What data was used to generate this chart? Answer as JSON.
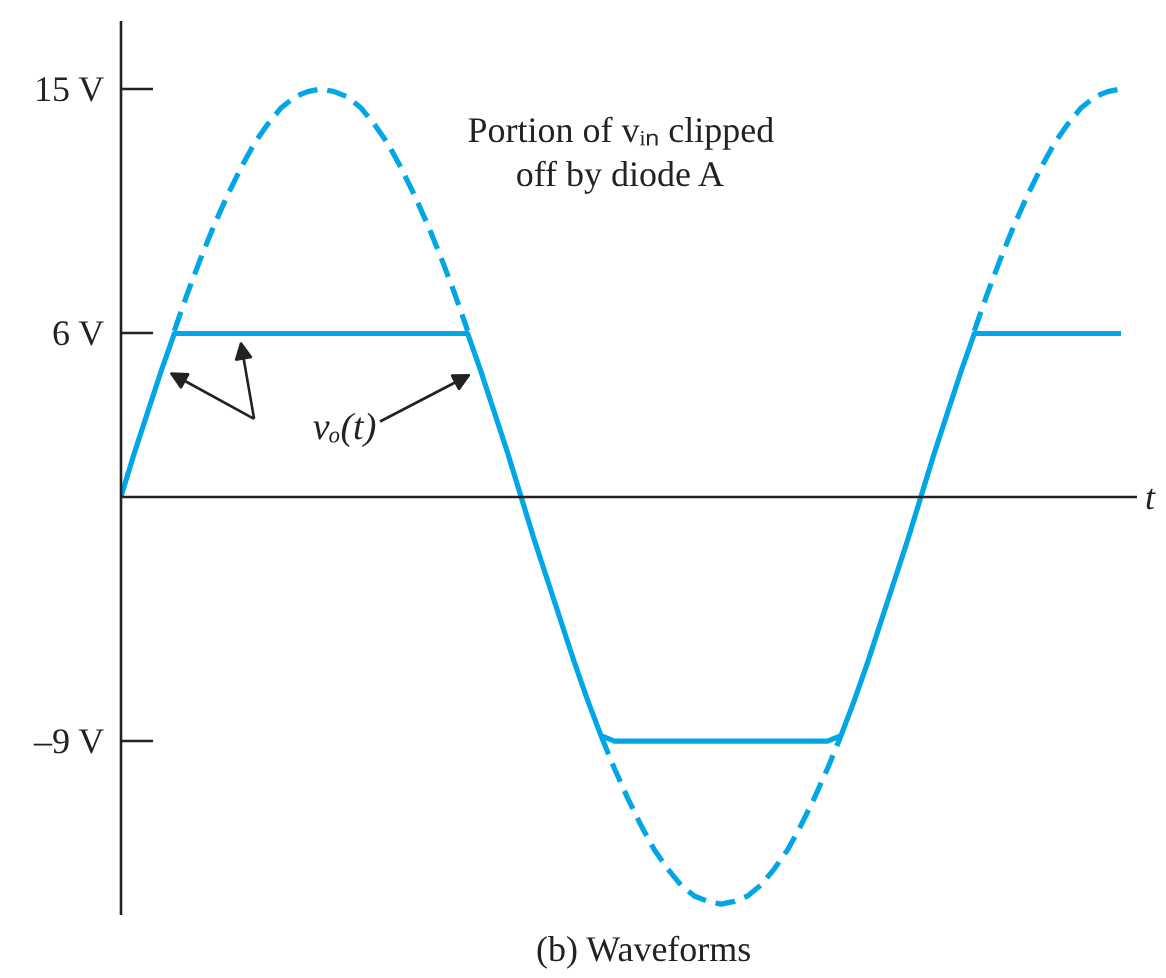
{
  "chart_data": {
    "type": "line",
    "title": "(b) Waveforms",
    "xlabel": "t",
    "categories": [
      null,
      null,
      null,
      null,
      null,
      null,
      null,
      null,
      null,
      null,
      null,
      null,
      null,
      null,
      null,
      null,
      null,
      null,
      null,
      null,
      null,
      null,
      null,
      null,
      null,
      null,
      null,
      null,
      null,
      null,
      null,
      null,
      null,
      null,
      null,
      null,
      null,
      null,
      null,
      null,
      null,
      null,
      null,
      null,
      null,
      null,
      null,
      null,
      null,
      null,
      null,
      null,
      null,
      null,
      null,
      null,
      null,
      null,
      null,
      null,
      null,
      null,
      null,
      null,
      null,
      null,
      null,
      null,
      null,
      null,
      null,
      null,
      null,
      null,
      null,
      null
    ],
    "ylim": [
      -15.4,
      17.5
    ],
    "yticks": [
      {
        "value": 15,
        "label": "15 V"
      },
      {
        "value": 6,
        "label": "6 V"
      },
      {
        "value": -9,
        "label": "–9 V"
      }
    ],
    "tick_labels": "y",
    "grid": false,
    "marker": "none",
    "annotations": [
      "Portion of vᵢₙ clipped off by diode A"
    ],
    "series": [
      {
        "name": "vₒ(t)",
        "color": "#00a6e6",
        "line_style": "solid",
        "values": [
          0,
          1.6,
          3.1,
          4.6,
          6,
          6,
          6,
          6,
          6,
          6,
          6,
          6,
          6,
          6,
          6,
          6,
          6,
          6,
          6,
          6,
          6,
          6,
          6,
          6,
          6,
          6,
          6,
          4.6,
          3.1,
          1.6,
          0,
          -1.6,
          -3.1,
          -4.6,
          -6.1,
          -7.5,
          -8.8,
          -9,
          -9,
          -9,
          -9,
          -9,
          -9,
          -9,
          -9,
          -9,
          -9,
          -9,
          -9,
          -9,
          -9,
          -9,
          -9,
          -9,
          -8.8,
          -7.5,
          -6.1,
          -4.6,
          -3.1,
          -1.6,
          0,
          1.6,
          3.1,
          4.6,
          6,
          6,
          6,
          6,
          6,
          6,
          6,
          6,
          6,
          6,
          6,
          6
        ]
      },
      {
        "color": "#00a6e6",
        "line_style": "dashed",
        "values": [
          null,
          null,
          null,
          null,
          6.1,
          7.5,
          8.8,
          10.0,
          11.1,
          12.1,
          13.0,
          13.7,
          14.3,
          14.7,
          14.9,
          15,
          14.9,
          14.7,
          14.3,
          13.7,
          13.0,
          12.1,
          11.1,
          10.0,
          8.8,
          7.5,
          6.1,
          null,
          null,
          null,
          null,
          null,
          null,
          null,
          null,
          null,
          -8.8,
          -10.0,
          -11.1,
          -12.1,
          -13.0,
          -13.7,
          -14.3,
          -14.7,
          -14.9,
          -15,
          -14.9,
          -14.7,
          -14.3,
          -13.7,
          -13.0,
          -12.1,
          -11.1,
          -10.0,
          -8.8,
          null,
          null,
          null,
          null,
          null,
          null,
          null,
          null,
          null,
          6.1,
          7.5,
          8.8,
          10.0,
          11.1,
          12.1,
          13.0,
          13.7,
          14.3,
          14.7,
          14.9,
          15
        ]
      }
    ]
  }
}
